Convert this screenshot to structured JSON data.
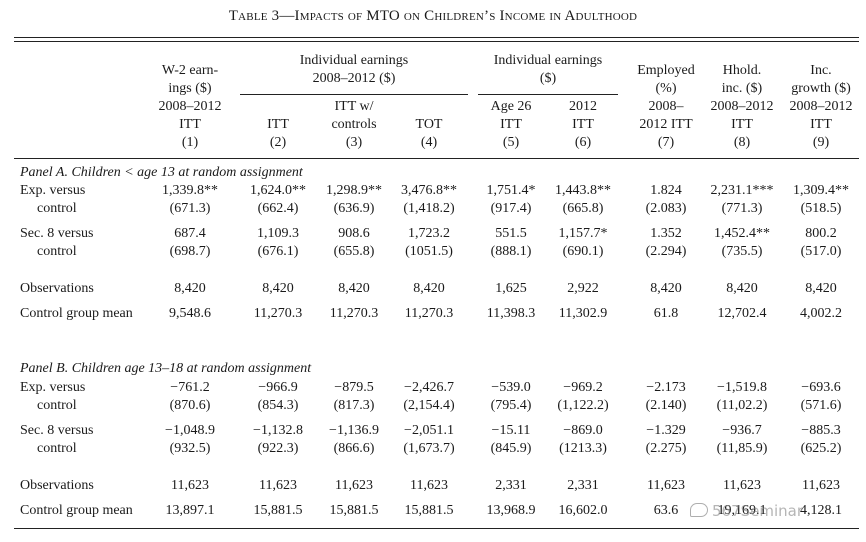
{
  "title": "Table 3—Impacts of MTO on Children’s Income in Adulthood",
  "headers": {
    "col1": [
      "W-2 earn-",
      "ings ($)",
      "2008–2012",
      "ITT",
      "(1)"
    ],
    "group_indiv_2008": [
      "Individual earnings",
      "2008–2012 ($)"
    ],
    "group_indiv": [
      "Individual earnings",
      "($)"
    ],
    "col2": [
      "ITT",
      "(2)"
    ],
    "col3": [
      "ITT w/",
      "controls",
      "(3)"
    ],
    "col4": [
      "TOT",
      "(4)"
    ],
    "col5": [
      "Age 26",
      "ITT",
      "(5)"
    ],
    "col6": [
      "2012",
      "ITT",
      "(6)"
    ],
    "col7": [
      "Employed",
      "(%)",
      "2008–",
      "2012 ITT",
      "(7)"
    ],
    "col8": [
      "Hhold.",
      "inc. ($)",
      "2008–2012",
      "ITT",
      "(8)"
    ],
    "col9": [
      "Inc.",
      "growth ($)",
      "2008–2012",
      "ITT",
      "(9)"
    ]
  },
  "panel_a": {
    "title": "Panel A. Children < age 13 at random assignment",
    "exp_label": [
      "Exp. versus",
      "control"
    ],
    "exp_coef": [
      "1,339.8**",
      "1,624.0**",
      "1,298.9**",
      "3,476.8**",
      "1,751.4*",
      "1,443.8**",
      "1.824",
      "2,231.1***",
      "1,309.4**"
    ],
    "exp_se": [
      "(671.3)",
      "(662.4)",
      "(636.9)",
      "(1,418.2)",
      "(917.4)",
      "(665.8)",
      "(2.083)",
      "(771.3)",
      "(518.5)"
    ],
    "sec8_label": [
      "Sec. 8 versus",
      "control"
    ],
    "sec8_coef": [
      "687.4",
      "1,109.3",
      "908.6",
      "1,723.2",
      "551.5",
      "1,157.7*",
      "1.352",
      "1,452.4**",
      "800.2"
    ],
    "sec8_se": [
      "(698.7)",
      "(676.1)",
      "(655.8)",
      "(1051.5)",
      "(888.1)",
      "(690.1)",
      "(2.294)",
      "(735.5)",
      "(517.0)"
    ],
    "obs_label": "Observations",
    "obs": [
      "8,420",
      "8,420",
      "8,420",
      "8,420",
      "1,625",
      "2,922",
      "8,420",
      "8,420",
      "8,420"
    ],
    "mean_label": "Control group mean",
    "mean": [
      "9,548.6",
      "11,270.3",
      "11,270.3",
      "11,270.3",
      "11,398.3",
      "11,302.9",
      "61.8",
      "12,702.4",
      "4,002.2"
    ]
  },
  "panel_b": {
    "title": "Panel B. Children age 13–18 at random assignment",
    "exp_label": [
      "Exp. versus",
      "control"
    ],
    "exp_coef": [
      "−761.2",
      "−966.9",
      "−879.5",
      "−2,426.7",
      "−539.0",
      "−969.2",
      "−2.173",
      "−1,519.8",
      "−693.6"
    ],
    "exp_se": [
      "(870.6)",
      "(854.3)",
      "(817.3)",
      "(2,154.4)",
      "(795.4)",
      "(1,122.2)",
      "(2.140)",
      "(11,02.2)",
      "(571.6)"
    ],
    "sec8_label": [
      "Sec. 8 versus",
      "control"
    ],
    "sec8_coef": [
      "−1,048.9",
      "−1,132.8",
      "−1,136.9",
      "−2,051.1",
      "−15.11",
      "−869.0",
      "−1.329",
      "−936.7",
      "−885.3"
    ],
    "sec8_se": [
      "(932.5)",
      "(922.3)",
      "(866.6)",
      "(1,673.7)",
      "(845.9)",
      "(1213.3)",
      "(2.275)",
      "(11,85.9)",
      "(625.2)"
    ],
    "obs_label": "Observations",
    "obs": [
      "11,623",
      "11,623",
      "11,623",
      "11,623",
      "2,331",
      "2,331",
      "11,623",
      "11,623",
      "11,623"
    ],
    "mean_label": "Control group mean",
    "mean": [
      "13,897.1",
      "15,881.5",
      "15,881.5",
      "15,881.5",
      "13,968.9",
      "16,602.0",
      "63.6",
      "19,169.1",
      "4,128.1"
    ]
  },
  "watermark": "567Seminar"
}
